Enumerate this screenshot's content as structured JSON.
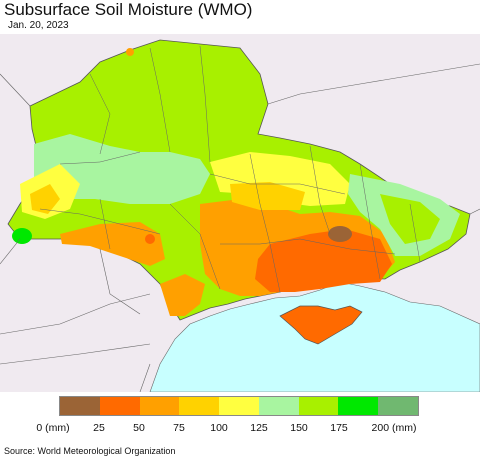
{
  "header": {
    "title": "Subsurface Soil Moisture (WMO)",
    "date": "Jan. 20, 2023"
  },
  "legend": {
    "colors": [
      "#9b6436",
      "#ff6a00",
      "#ffa000",
      "#ffd200",
      "#ffff40",
      "#a8f5a0",
      "#a8f000",
      "#00e800",
      "#70b870"
    ],
    "labels": [
      "0 (mm)",
      "25",
      "50",
      "75",
      "100",
      "125",
      "150",
      "175",
      "200 (mm)"
    ]
  },
  "source": "Source: World Meteorological Organization",
  "map": {
    "background_color": "#f0eaf0",
    "sea_color": "#c8ffff"
  }
}
